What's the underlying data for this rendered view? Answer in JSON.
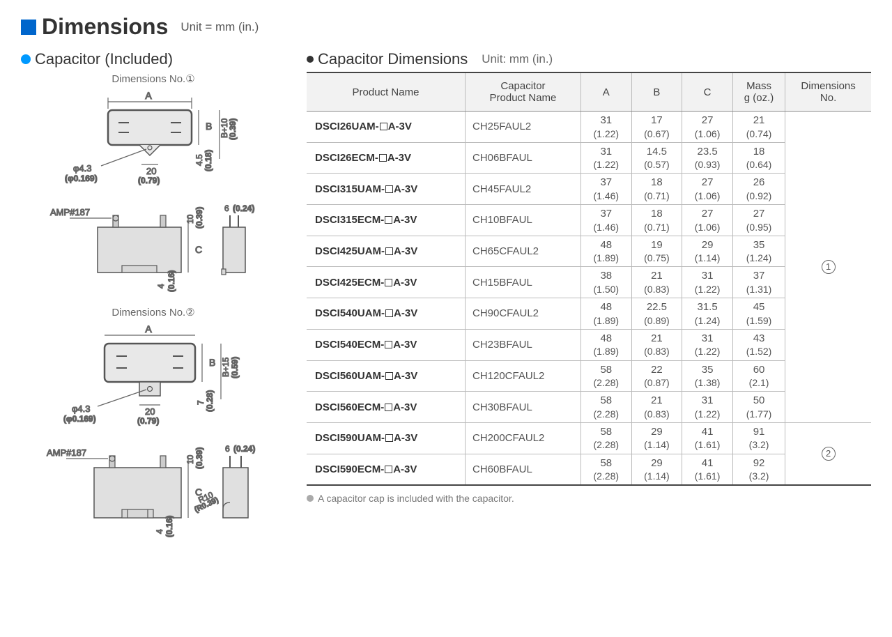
{
  "title": "Dimensions",
  "unit_main": "Unit = mm (in.)",
  "left_title": "Capacitor (Included)",
  "right_title": "Capacitor Dimensions",
  "right_unit": "Unit: mm (in.)",
  "dim_no1": "Dimensions No.①",
  "dim_no2": "Dimensions No.②",
  "footnote": "A capacitor cap is included with the capacitor.",
  "headers": {
    "product": "Product Name",
    "capacitor": "Capacitor\nProduct Name",
    "a": "A",
    "b": "B",
    "c": "C",
    "mass": "Mass\ng (oz.)",
    "dimno": "Dimensions\nNo."
  },
  "rows": [
    {
      "p": "DSCI26UAM-□A-3V",
      "cap": "CH25FAUL2",
      "a": [
        "31",
        "(1.22)"
      ],
      "b": [
        "17",
        "(0.67)"
      ],
      "c": [
        "27",
        "(1.06)"
      ],
      "m": [
        "21",
        "(0.74)"
      ]
    },
    {
      "p": "DSCI26ECM-□A-3V",
      "cap": "CH06BFAUL",
      "a": [
        "31",
        "(1.22)"
      ],
      "b": [
        "14.5",
        "(0.57)"
      ],
      "c": [
        "23.5",
        "(0.93)"
      ],
      "m": [
        "18",
        "(0.64)"
      ]
    },
    {
      "p": "DSCI315UAM-□A-3V",
      "cap": "CH45FAUL2",
      "a": [
        "37",
        "(1.46)"
      ],
      "b": [
        "18",
        "(0.71)"
      ],
      "c": [
        "27",
        "(1.06)"
      ],
      "m": [
        "26",
        "(0.92)"
      ]
    },
    {
      "p": "DSCI315ECM-□A-3V",
      "cap": "CH10BFAUL",
      "a": [
        "37",
        "(1.46)"
      ],
      "b": [
        "18",
        "(0.71)"
      ],
      "c": [
        "27",
        "(1.06)"
      ],
      "m": [
        "27",
        "(0.95)"
      ]
    },
    {
      "p": "DSCI425UAM-□A-3V",
      "cap": "CH65CFAUL2",
      "a": [
        "48",
        "(1.89)"
      ],
      "b": [
        "19",
        "(0.75)"
      ],
      "c": [
        "29",
        "(1.14)"
      ],
      "m": [
        "35",
        "(1.24)"
      ]
    },
    {
      "p": "DSCI425ECM-□A-3V",
      "cap": "CH15BFAUL",
      "a": [
        "38",
        "(1.50)"
      ],
      "b": [
        "21",
        "(0.83)"
      ],
      "c": [
        "31",
        "(1.22)"
      ],
      "m": [
        "37",
        "(1.31)"
      ]
    },
    {
      "p": "DSCI540UAM-□A-3V",
      "cap": "CH90CFAUL2",
      "a": [
        "48",
        "(1.89)"
      ],
      "b": [
        "22.5",
        "(0.89)"
      ],
      "c": [
        "31.5",
        "(1.24)"
      ],
      "m": [
        "45",
        "(1.59)"
      ]
    },
    {
      "p": "DSCI540ECM-□A-3V",
      "cap": "CH23BFAUL",
      "a": [
        "48",
        "(1.89)"
      ],
      "b": [
        "21",
        "(0.83)"
      ],
      "c": [
        "31",
        "(1.22)"
      ],
      "m": [
        "43",
        "(1.52)"
      ]
    },
    {
      "p": "DSCI560UAM-□A-3V",
      "cap": "CH120CFAUL2",
      "a": [
        "58",
        "(2.28)"
      ],
      "b": [
        "22",
        "(0.87)"
      ],
      "c": [
        "35",
        "(1.38)"
      ],
      "m": [
        "60",
        "(2.1)"
      ]
    },
    {
      "p": "DSCI560ECM-□A-3V",
      "cap": "CH30BFAUL",
      "a": [
        "58",
        "(2.28)"
      ],
      "b": [
        "21",
        "(0.83)"
      ],
      "c": [
        "31",
        "(1.22)"
      ],
      "m": [
        "50",
        "(1.77)"
      ]
    },
    {
      "p": "DSCI590UAM-□A-3V",
      "cap": "CH200CFAUL2",
      "a": [
        "58",
        "(2.28)"
      ],
      "b": [
        "29",
        "(1.14)"
      ],
      "c": [
        "41",
        "(1.61)"
      ],
      "m": [
        "91",
        "(3.2)"
      ]
    },
    {
      "p": "DSCI590ECM-□A-3V",
      "cap": "CH60BFAUL",
      "a": [
        "58",
        "(2.28)"
      ],
      "b": [
        "29",
        "(1.14)"
      ],
      "c": [
        "41",
        "(1.61)"
      ],
      "m": [
        "92",
        "(3.2)"
      ]
    }
  ],
  "dim_groups": [
    {
      "label": "①",
      "span": 10
    },
    {
      "label": "②",
      "span": 2
    }
  ],
  "diag": {
    "labels": {
      "amp": "AMP#187",
      "phi43": "φ4.3",
      "phi0169": "(φ0.169)",
      "d20": "20",
      "d20i": "(0.79)",
      "d45": "4.5",
      "d018": "(0.18)",
      "b10": "B+10",
      "b10i": "(0.39)",
      "b15": "B+15",
      "b15i": "(0.59)",
      "d7": "7",
      "d028": "(0.28)",
      "d10": "10",
      "d039": "(0.39)",
      "d6": "6",
      "d024": "(0.24)",
      "d4": "4",
      "d016": "(0.16)",
      "r10": "R10",
      "r039": "(R0.39)",
      "A": "A",
      "B": "B",
      "C": "C"
    }
  }
}
